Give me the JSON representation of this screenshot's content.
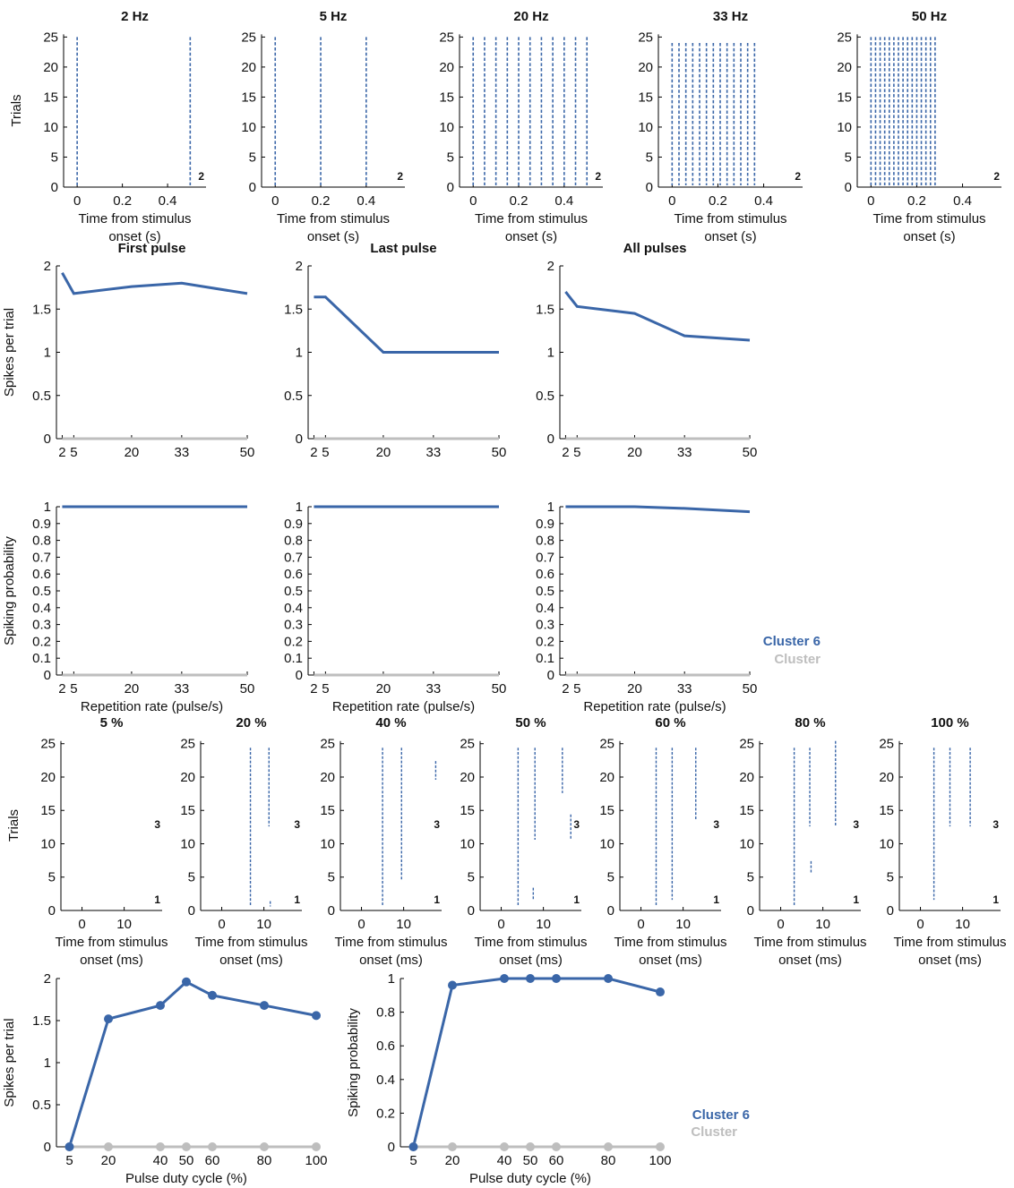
{
  "colors": {
    "cluster": "#3a66a8",
    "reference": "#bebebe",
    "axis": "#000000"
  },
  "legend_rates": {
    "entries": [
      "Cluster 6",
      "Cluster"
    ]
  },
  "legend_duty": {
    "entries": [
      "Cluster 6",
      "Cluster"
    ]
  },
  "chart_data": [
    {
      "type": "scatter",
      "panel": "raster-rate-2hz",
      "title": "2 Hz",
      "ylabel": "Trials",
      "xlabel": "Time from stimulus onset (s)",
      "xlim": [
        -0.06,
        0.57
      ],
      "ylim": [
        0,
        25.5
      ],
      "xticks": [
        "0",
        "0.2",
        "0.4"
      ],
      "yticks": [
        "0",
        "5",
        "10",
        "15",
        "20",
        "25"
      ],
      "corner_labels": [
        "2"
      ],
      "pulse_times": [
        0,
        0.5
      ],
      "trials": 25
    },
    {
      "type": "scatter",
      "panel": "raster-rate-5hz",
      "title": "5 Hz",
      "ylabel": "",
      "xlabel": "Time from stimulus onset (s)",
      "xlim": [
        -0.06,
        0.57
      ],
      "ylim": [
        0,
        25.5
      ],
      "xticks": [
        "0",
        "0.2",
        "0.4"
      ],
      "yticks": [
        "0",
        "5",
        "10",
        "15",
        "20",
        "25"
      ],
      "corner_labels": [
        "2"
      ],
      "pulse_times": [
        0,
        0.2,
        0.4
      ],
      "trials": 25
    },
    {
      "type": "scatter",
      "panel": "raster-rate-20hz",
      "title": "20 Hz",
      "ylabel": "",
      "xlabel": "Time from stimulus onset (s)",
      "xlim": [
        -0.06,
        0.57
      ],
      "ylim": [
        0,
        25.5
      ],
      "xticks": [
        "0",
        "0.2",
        "0.4"
      ],
      "yticks": [
        "0",
        "5",
        "10",
        "15",
        "20",
        "25"
      ],
      "corner_labels": [
        "2"
      ],
      "pulse_times": [
        0,
        0.05,
        0.1,
        0.15,
        0.2,
        0.25,
        0.3,
        0.35,
        0.4,
        0.45,
        0.5
      ],
      "trials": 25
    },
    {
      "type": "scatter",
      "panel": "raster-rate-33hz",
      "title": "33 Hz",
      "ylabel": "",
      "xlabel": "Time from stimulus onset (s)",
      "xlim": [
        -0.06,
        0.57
      ],
      "ylim": [
        0,
        25.5
      ],
      "xticks": [
        "0",
        "0.2",
        "0.4"
      ],
      "yticks": [
        "0",
        "5",
        "10",
        "15",
        "20",
        "25"
      ],
      "corner_labels": [
        "2"
      ],
      "pulse_times": [
        0,
        0.03,
        0.06,
        0.09,
        0.12,
        0.15,
        0.18,
        0.21,
        0.24,
        0.27,
        0.3,
        0.33,
        0.36
      ],
      "trials": 24
    },
    {
      "type": "scatter",
      "panel": "raster-rate-50hz",
      "title": "50 Hz",
      "ylabel": "",
      "xlabel": "Time from stimulus onset (s)",
      "xlim": [
        -0.06,
        0.57
      ],
      "ylim": [
        0,
        25.5
      ],
      "xticks": [
        "0",
        "0.2",
        "0.4"
      ],
      "yticks": [
        "0",
        "5",
        "10",
        "15",
        "20",
        "25"
      ],
      "corner_labels": [
        "2"
      ],
      "pulse_times": [
        0,
        0.02,
        0.04,
        0.06,
        0.08,
        0.1,
        0.12,
        0.14,
        0.16,
        0.18,
        0.2,
        0.22,
        0.24,
        0.26,
        0.28
      ],
      "trials": 25
    },
    {
      "type": "line",
      "panel": "spikes-first-pulse",
      "title": "First pulse",
      "ylabel": "Spikes per trial",
      "xlabel": "",
      "x": [
        2,
        5,
        20,
        33,
        50
      ],
      "xlim": [
        0.5,
        50
      ],
      "ylim": [
        0,
        2
      ],
      "xticks": [
        "2",
        "5",
        "20",
        "33",
        "50"
      ],
      "yticks": [
        "0",
        "0.5",
        "1",
        "1.5",
        "2"
      ],
      "series": [
        {
          "name": "Cluster 6",
          "values": [
            1.92,
            1.68,
            1.76,
            1.8,
            1.68
          ]
        },
        {
          "name": "Cluster",
          "values": [
            0,
            0,
            0,
            0,
            0
          ]
        }
      ]
    },
    {
      "type": "line",
      "panel": "spikes-last-pulse",
      "title": "Last pulse",
      "ylabel": "",
      "xlabel": "",
      "x": [
        2,
        5,
        20,
        33,
        50
      ],
      "xlim": [
        0.5,
        50
      ],
      "ylim": [
        0,
        2
      ],
      "xticks": [
        "2",
        "5",
        "20",
        "33",
        "50"
      ],
      "yticks": [
        "0",
        "0.5",
        "1",
        "1.5",
        "2"
      ],
      "series": [
        {
          "name": "Cluster 6",
          "values": [
            1.64,
            1.64,
            1.0,
            1.0,
            1.0
          ]
        },
        {
          "name": "Cluster",
          "values": [
            0,
            0,
            0,
            0,
            0
          ]
        }
      ]
    },
    {
      "type": "line",
      "panel": "spikes-all-pulses",
      "title": "All pulses",
      "ylabel": "",
      "xlabel": "",
      "x": [
        2,
        5,
        20,
        33,
        50
      ],
      "xlim": [
        0.5,
        50
      ],
      "ylim": [
        0,
        2
      ],
      "xticks": [
        "2",
        "5",
        "20",
        "33",
        "50"
      ],
      "yticks": [
        "0",
        "0.5",
        "1",
        "1.5",
        "2"
      ],
      "series": [
        {
          "name": "Cluster 6",
          "values": [
            1.7,
            1.53,
            1.45,
            1.19,
            1.14
          ]
        },
        {
          "name": "Cluster",
          "values": [
            0,
            0,
            0,
            0,
            0
          ]
        }
      ]
    },
    {
      "type": "line",
      "panel": "prob-first-pulse",
      "title": "",
      "ylabel": "Spiking probability",
      "xlabel": "Repetition rate (pulse/s)",
      "x": [
        2,
        5,
        20,
        33,
        50
      ],
      "xlim": [
        0.5,
        50
      ],
      "ylim": [
        0,
        1
      ],
      "xticks": [
        "2",
        "5",
        "20",
        "33",
        "50"
      ],
      "yticks": [
        "0",
        "0.1",
        "0.2",
        "0.3",
        "0.4",
        "0.5",
        "0.6",
        "0.7",
        "0.8",
        "0.9",
        "1"
      ],
      "series": [
        {
          "name": "Cluster 6",
          "values": [
            1,
            1,
            1,
            1,
            1
          ]
        },
        {
          "name": "Cluster",
          "values": [
            0,
            0,
            0,
            0,
            0
          ]
        }
      ]
    },
    {
      "type": "line",
      "panel": "prob-last-pulse",
      "title": "",
      "ylabel": "",
      "xlabel": "Repetition rate (pulse/s)",
      "x": [
        2,
        5,
        20,
        33,
        50
      ],
      "xlim": [
        0.5,
        50
      ],
      "ylim": [
        0,
        1
      ],
      "xticks": [
        "2",
        "5",
        "20",
        "33",
        "50"
      ],
      "yticks": [
        "0",
        "0.1",
        "0.2",
        "0.3",
        "0.4",
        "0.5",
        "0.6",
        "0.7",
        "0.8",
        "0.9",
        "1"
      ],
      "series": [
        {
          "name": "Cluster 6",
          "values": [
            1,
            1,
            1,
            1,
            1
          ]
        },
        {
          "name": "Cluster",
          "values": [
            0,
            0,
            0,
            0,
            0
          ]
        }
      ]
    },
    {
      "type": "line",
      "panel": "prob-all-pulses",
      "title": "",
      "ylabel": "",
      "xlabel": "Repetition rate (pulse/s)",
      "x": [
        2,
        5,
        20,
        33,
        50
      ],
      "xlim": [
        0.5,
        50
      ],
      "ylim": [
        0,
        1
      ],
      "xticks": [
        "2",
        "5",
        "20",
        "33",
        "50"
      ],
      "yticks": [
        "0",
        "0.1",
        "0.2",
        "0.3",
        "0.4",
        "0.5",
        "0.6",
        "0.7",
        "0.8",
        "0.9",
        "1"
      ],
      "series": [
        {
          "name": "Cluster 6",
          "values": [
            1,
            1,
            1,
            0.99,
            0.97
          ]
        },
        {
          "name": "Cluster",
          "values": [
            0,
            0,
            0,
            0,
            0
          ]
        }
      ]
    },
    {
      "type": "scatter",
      "panel": "raster-duty-5",
      "title": "5 %",
      "ylabel": "Trials",
      "xlabel": "Time from stimulus onset (ms)",
      "xlim": [
        -5,
        19
      ],
      "ylim": [
        0,
        25.5
      ],
      "xticks": [
        "0",
        "10"
      ],
      "yticks": [
        "0",
        "5",
        "10",
        "15",
        "20",
        "25"
      ],
      "corner_labels": [
        "3",
        "1"
      ],
      "spike_columns": []
    },
    {
      "type": "scatter",
      "panel": "raster-duty-20",
      "title": "20 %",
      "ylabel": "",
      "xlabel": "Time from stimulus onset (ms)",
      "xlim": [
        -5,
        19
      ],
      "ylim": [
        0,
        25.5
      ],
      "xticks": [
        "0",
        "10"
      ],
      "yticks": [
        "0",
        "5",
        "10",
        "15",
        "20",
        "25"
      ],
      "corner_labels": [
        "3",
        "1"
      ],
      "spike_columns": [
        {
          "x": 6.8,
          "from": 1,
          "to": 24
        },
        {
          "x": 11.2,
          "from": 13,
          "to": 24
        },
        {
          "x": 11.5,
          "from": 1,
          "to": 1
        }
      ]
    },
    {
      "type": "scatter",
      "panel": "raster-duty-40",
      "title": "40 %",
      "ylabel": "",
      "xlabel": "Time from stimulus onset (ms)",
      "xlim": [
        -5,
        19
      ],
      "ylim": [
        0,
        25.5
      ],
      "xticks": [
        "0",
        "10"
      ],
      "yticks": [
        "0",
        "5",
        "10",
        "15",
        "20",
        "25"
      ],
      "corner_labels": [
        "3",
        "1"
      ],
      "spike_columns": [
        {
          "x": 5,
          "from": 1,
          "to": 24
        },
        {
          "x": 9.5,
          "from": 5,
          "to": 24
        },
        {
          "x": 17.6,
          "from": 20,
          "to": 22
        }
      ]
    },
    {
      "type": "scatter",
      "panel": "raster-duty-50",
      "title": "50 %",
      "ylabel": "",
      "xlabel": "Time from stimulus onset (ms)",
      "xlim": [
        -5,
        19
      ],
      "ylim": [
        0,
        25.5
      ],
      "xticks": [
        "0",
        "10"
      ],
      "yticks": [
        "0",
        "5",
        "10",
        "15",
        "20",
        "25"
      ],
      "corner_labels": [
        "3",
        "1"
      ],
      "spike_columns": [
        {
          "x": 4,
          "from": 1,
          "to": 24
        },
        {
          "x": 8,
          "from": 11,
          "to": 24
        },
        {
          "x": 7.6,
          "from": 2,
          "to": 3
        },
        {
          "x": 14.5,
          "from": 18,
          "to": 24
        },
        {
          "x": 16.5,
          "from": 11,
          "to": 14
        }
      ]
    },
    {
      "type": "scatter",
      "panel": "raster-duty-60",
      "title": "60 %",
      "ylabel": "",
      "xlabel": "Time from stimulus onset (ms)",
      "xlim": [
        -5,
        19
      ],
      "ylim": [
        0,
        25.5
      ],
      "xticks": [
        "0",
        "10"
      ],
      "yticks": [
        "0",
        "5",
        "10",
        "15",
        "20",
        "25"
      ],
      "corner_labels": [
        "3",
        "1"
      ],
      "spike_columns": [
        {
          "x": 3.6,
          "from": 1,
          "to": 24
        },
        {
          "x": 7.4,
          "from": 2,
          "to": 24
        },
        {
          "x": 13,
          "from": 14,
          "to": 24
        }
      ]
    },
    {
      "type": "scatter",
      "panel": "raster-duty-80",
      "title": "80 %",
      "ylabel": "",
      "xlabel": "Time from stimulus onset (ms)",
      "xlim": [
        -5,
        19
      ],
      "ylim": [
        0,
        25.5
      ],
      "xticks": [
        "0",
        "10"
      ],
      "yticks": [
        "0",
        "5",
        "10",
        "15",
        "20",
        "25"
      ],
      "corner_labels": [
        "3",
        "1"
      ],
      "spike_columns": [
        {
          "x": 3.2,
          "from": 1,
          "to": 24
        },
        {
          "x": 6.9,
          "from": 13,
          "to": 24
        },
        {
          "x": 7.2,
          "from": 6,
          "to": 7
        },
        {
          "x": 13,
          "from": 13,
          "to": 25
        }
      ]
    },
    {
      "type": "scatter",
      "panel": "raster-duty-100",
      "title": "100 %",
      "ylabel": "",
      "xlabel": "Time from stimulus onset (ms)",
      "xlim": [
        -5,
        19
      ],
      "ylim": [
        0,
        25.5
      ],
      "xticks": [
        "0",
        "10"
      ],
      "yticks": [
        "0",
        "5",
        "10",
        "15",
        "20",
        "25"
      ],
      "corner_labels": [
        "3",
        "1"
      ],
      "spike_columns": [
        {
          "x": 3.2,
          "from": 2,
          "to": 24
        },
        {
          "x": 7,
          "from": 13,
          "to": 24
        },
        {
          "x": 11.8,
          "from": 13,
          "to": 24
        }
      ]
    },
    {
      "type": "line",
      "panel": "duty-spikes",
      "title": "",
      "ylabel": "Spikes per trial",
      "xlabel": "Pulse duty cycle (%)",
      "x": [
        5,
        20,
        40,
        50,
        60,
        80,
        100
      ],
      "xlim": [
        0,
        100
      ],
      "ylim": [
        0,
        2
      ],
      "xticks": [
        "5",
        "20",
        "40",
        "50",
        "60",
        "80",
        "100"
      ],
      "yticks": [
        "0",
        "0.5",
        "1",
        "1.5",
        "2"
      ],
      "series": [
        {
          "name": "Cluster 6",
          "values": [
            0,
            1.52,
            1.68,
            1.96,
            1.8,
            1.68,
            1.56
          ]
        },
        {
          "name": "Cluster",
          "values": [
            0,
            0,
            0,
            0,
            0,
            0,
            0
          ]
        }
      ]
    },
    {
      "type": "line",
      "panel": "duty-prob",
      "title": "",
      "ylabel": "Spiking probability",
      "xlabel": "Pulse duty cycle (%)",
      "x": [
        5,
        20,
        40,
        50,
        60,
        80,
        100
      ],
      "xlim": [
        0,
        100
      ],
      "ylim": [
        0,
        1
      ],
      "xticks": [
        "5",
        "20",
        "40",
        "50",
        "60",
        "80",
        "100"
      ],
      "yticks": [
        "0",
        "0.2",
        "0.4",
        "0.6",
        "0.8",
        "1"
      ],
      "series": [
        {
          "name": "Cluster 6",
          "values": [
            0,
            0.96,
            1.0,
            1.0,
            1.0,
            1.0,
            0.92
          ]
        },
        {
          "name": "Cluster",
          "values": [
            0,
            0,
            0,
            0,
            0,
            0,
            0
          ]
        }
      ]
    }
  ]
}
